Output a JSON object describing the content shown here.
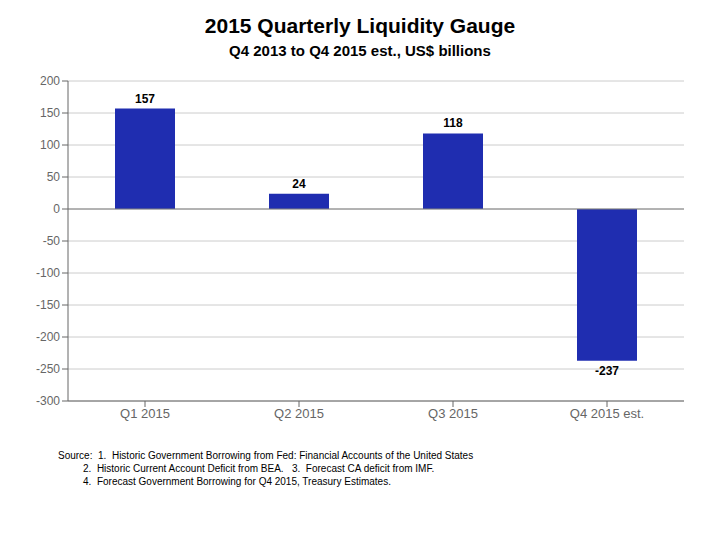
{
  "chart_data": {
    "type": "bar",
    "title": "2015 Quarterly Liquidity Gauge",
    "subtitle": "Q4 2013 to Q4 2015 est., US$ billions",
    "categories": [
      "Q1 2015",
      "Q2 2015",
      "Q3 2015",
      "Q4 2015 est."
    ],
    "values": [
      157,
      24,
      118,
      -237
    ],
    "color": "#1F2DB0",
    "ylim": [
      -300,
      200
    ],
    "yticks": [
      -300,
      -250,
      -200,
      -150,
      -100,
      -50,
      0,
      50,
      100,
      150,
      200
    ],
    "grid": true,
    "data_labels": true,
    "annotations": [
      "Source:  1.  Historic Government Borrowing from Fed: Financial Accounts of the United States",
      "         2.  Historic Current Account Deficit from BEA.   3.  Forecast CA deficit from IMF.",
      "         4.  Forecast Government Borrowing for Q4 2015, Treasury Estimates."
    ]
  }
}
